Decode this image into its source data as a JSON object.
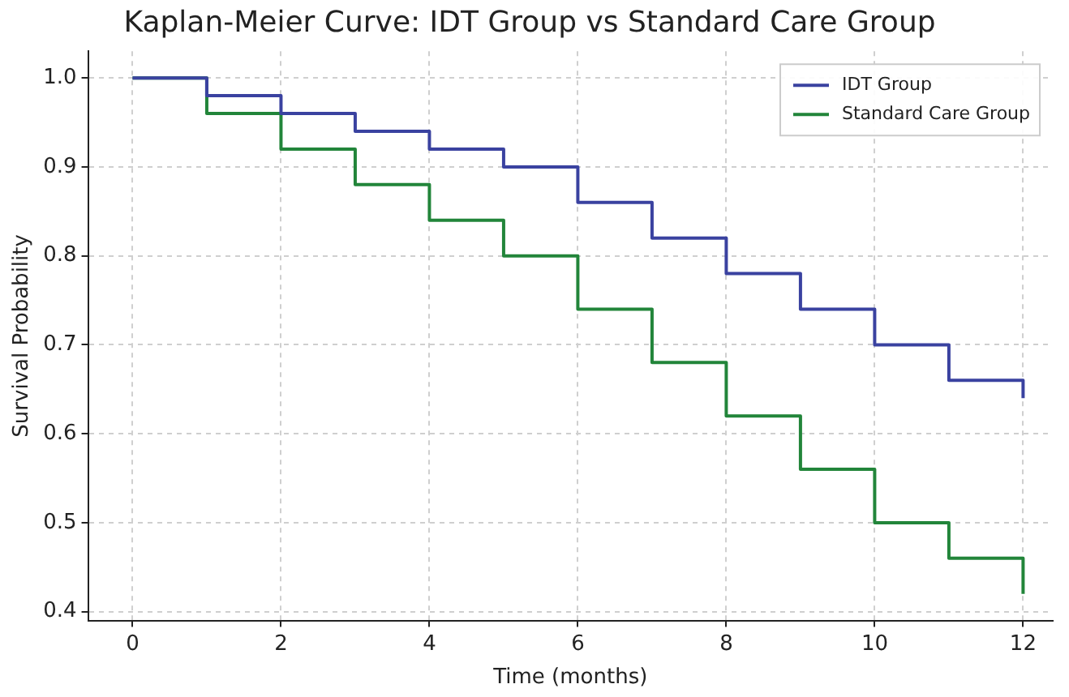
{
  "chart_data": {
    "type": "step",
    "title": "Kaplan-Meier Curve: IDT Group vs Standard Care Group",
    "xlabel": "Time (months)",
    "ylabel": "Survival Probability",
    "x": [
      0,
      1,
      2,
      3,
      4,
      5,
      6,
      7,
      8,
      9,
      10,
      11,
      12
    ],
    "series": [
      {
        "name": "IDT Group",
        "color": "#3a42a0",
        "values": [
          1.0,
          0.98,
          0.96,
          0.94,
          0.92,
          0.9,
          0.86,
          0.82,
          0.78,
          0.74,
          0.7,
          0.66,
          0.64
        ]
      },
      {
        "name": "Standard Care Group",
        "color": "#22853a",
        "values": [
          1.0,
          0.96,
          0.92,
          0.88,
          0.84,
          0.8,
          0.74,
          0.68,
          0.62,
          0.56,
          0.5,
          0.46,
          0.42
        ]
      }
    ],
    "xlim": [
      -0.6,
      12.4
    ],
    "xticks": [
      0,
      2,
      4,
      6,
      8,
      10,
      12
    ],
    "ylim": [
      0.39,
      1.03
    ],
    "yticks": [
      0.4,
      0.5,
      0.6,
      0.7,
      0.8,
      0.9,
      {
        "value": 1.0,
        "label": "1.0"
      }
    ],
    "grid": true,
    "legend": "top right",
    "line_style": "solid",
    "marker": "none"
  }
}
